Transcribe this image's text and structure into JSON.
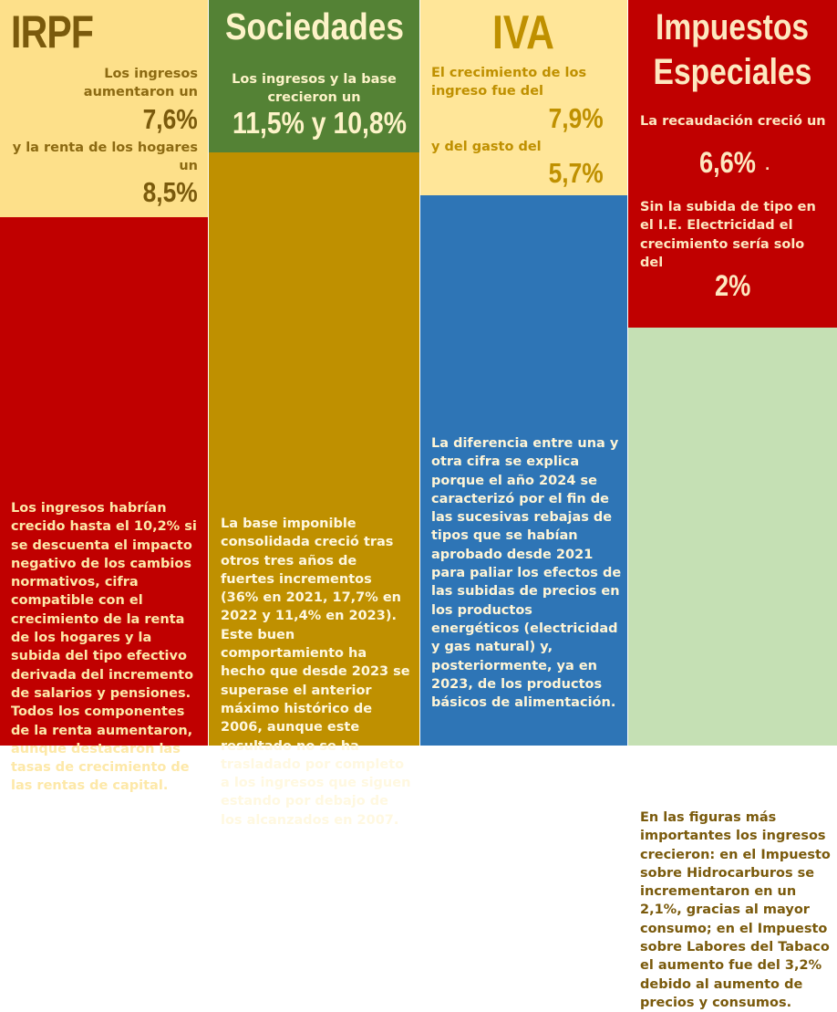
{
  "colors": {
    "irpf_top": "#FDE08A",
    "irpf_bottom": "#C00000",
    "sociedades_top": "#548235",
    "sociedades_bottom": "#BF9000",
    "iva_top": "#FFE699",
    "iva_bottom": "#2E75B6",
    "especiales_top": "#C00000",
    "especiales_bottom": "#C5E0B4"
  },
  "irpf": {
    "title": "IRPF",
    "text1": "Los ingresos aumentaron un",
    "value1": "7,6%",
    "text2": "y la renta de los hogares un",
    "value2": "8,5%",
    "body": "Los ingresos habrían crecido hasta el 10,2% si se descuenta el impacto negativo de los cambios normativos, cifra compatible con el crecimiento de la renta de los hogares y la subida del tipo efectivo derivada del incremento de salarios y pensiones. Todos los componentes de la renta aumentaron, aunque destacaron las tasas de crecimiento de las rentas de capital."
  },
  "sociedades": {
    "title": "Sociedades",
    "text1": "Los ingresos y la base crecieron un",
    "value1": "11,5% y 10,8%",
    "body": "La base imponible consolidada creció tras otros tres años de fuertes incrementos (36% en 2021, 17,7% en 2022 y 11,4% en 2023). Este buen comportamiento ha hecho que desde 2023 se superase el anterior máximo histórico de 2006, aunque este resultado no se ha trasladado por completo a los ingresos que siguen estando por debajo de los alcanzados en 2007."
  },
  "iva": {
    "title": "IVA",
    "text1": "El crecimiento de los ingreso fue del",
    "value1": "7,9%",
    "text2": "y del gasto del",
    "value2": "5,7%",
    "body": "La diferencia entre una y otra cifra se explica porque el año 2024 se caracterizó por el fin de las sucesivas rebajas de tipos que se habían aprobado desde 2021 para paliar los efectos de las subidas de precios en los productos energéticos (electricidad y gas natural) y, posteriormente, ya en 2023, de los productos básicos de alimentación."
  },
  "especiales": {
    "title_line1": "Impuestos",
    "title_line2": "Especiales",
    "text1": "La recaudación creció un",
    "value1": "6,6%",
    "value1_suffix": ".",
    "text2": "Sin la subida de tipo en el I.E. Electricidad el crecimiento sería solo del",
    "value2": "2%",
    "body": "En las figuras más importantes los ingresos crecieron: en el Impuesto sobre Hidrocarburos se incrementaron en un 2,1%, gracias al mayor consumo; en el Impuesto sobre Labores del Tabaco el aumento fue del 3,2% debido al aumento de precios y consumos."
  }
}
